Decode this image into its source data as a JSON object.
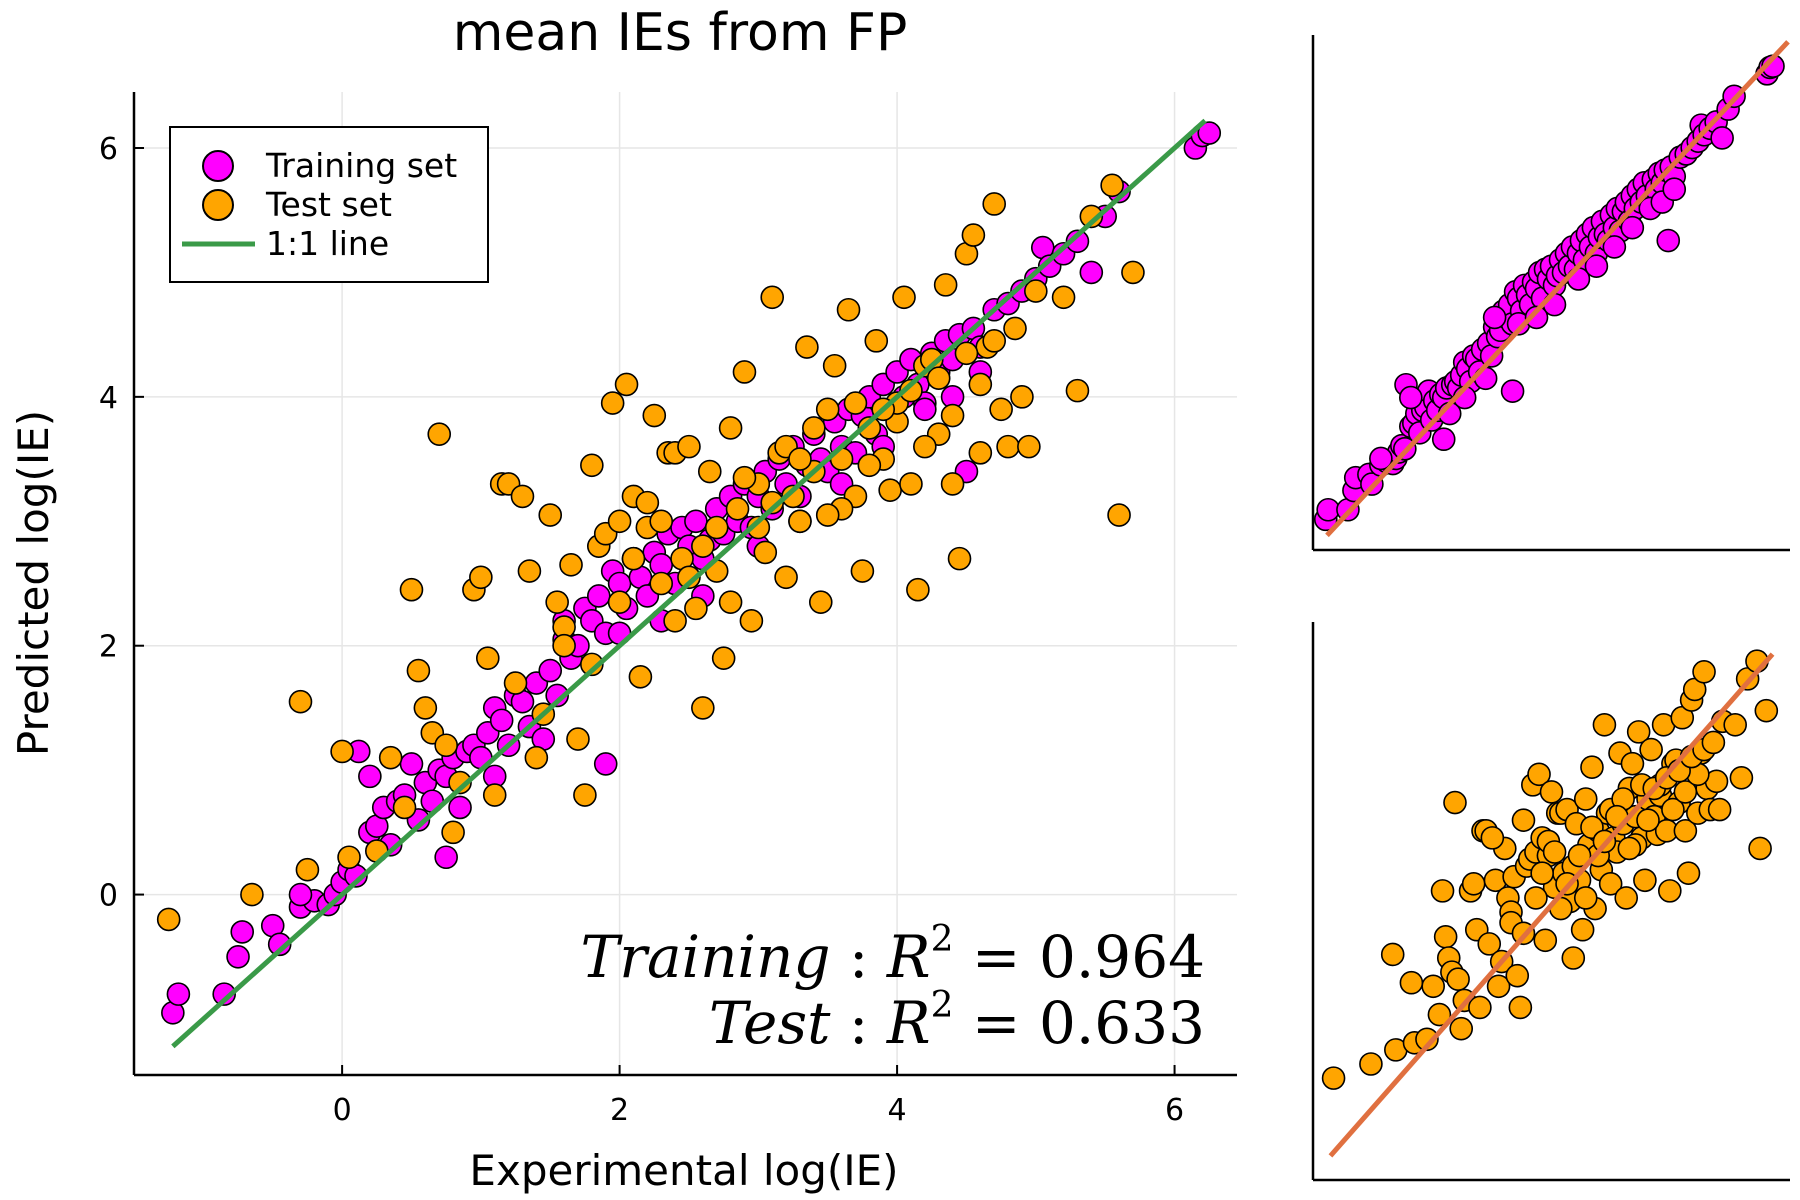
{
  "colors": {
    "training": "#ff00ff",
    "test": "#ffa500",
    "identity_main": "#3a9a48",
    "identity_inset": "#e07040",
    "grid": "#e6e6e6",
    "axis": "#000000"
  },
  "chart_data": [
    {
      "type": "scatter",
      "title": "mean IEs from FP",
      "xlabel": "Experimental log(IE)",
      "ylabel": "Predicted log(IE)",
      "xlim": [
        -1.5,
        6.45
      ],
      "ylim": [
        -1.45,
        6.45
      ],
      "xticks": [
        0,
        2,
        4,
        6
      ],
      "yticks": [
        0,
        2,
        4,
        6
      ],
      "grid": true,
      "legend_position": "top-left",
      "legend": [
        "Training set",
        "Test set",
        "1:1 line"
      ],
      "annotations": [
        {
          "label": "Training",
          "r2": "0.964"
        },
        {
          "label": "Test",
          "r2": "0.633"
        }
      ],
      "line": {
        "name": "1:1 line",
        "x": [
          -1.22,
          6.22
        ],
        "y": [
          -1.22,
          6.22
        ]
      },
      "series": [
        {
          "name": "Training set",
          "color": "#ff00ff",
          "points": [
            [
              -1.22,
              -0.95
            ],
            [
              -1.18,
              -0.8
            ],
            [
              -0.85,
              -0.8
            ],
            [
              -0.75,
              -0.5
            ],
            [
              -0.72,
              -0.3
            ],
            [
              -0.5,
              -0.25
            ],
            [
              -0.45,
              -0.4
            ],
            [
              -0.3,
              -0.1
            ],
            [
              -0.2,
              -0.05
            ],
            [
              -0.1,
              -0.08
            ],
            [
              -0.05,
              0.0
            ],
            [
              0.0,
              0.1
            ],
            [
              0.05,
              0.2
            ],
            [
              0.1,
              0.15
            ],
            [
              0.12,
              1.15
            ],
            [
              0.2,
              0.5
            ],
            [
              0.25,
              0.55
            ],
            [
              0.3,
              0.7
            ],
            [
              0.35,
              0.4
            ],
            [
              0.4,
              0.75
            ],
            [
              0.45,
              0.8
            ],
            [
              0.5,
              1.05
            ],
            [
              0.55,
              0.6
            ],
            [
              0.6,
              0.9
            ],
            [
              0.65,
              0.75
            ],
            [
              0.7,
              1.0
            ],
            [
              0.75,
              0.95
            ],
            [
              0.8,
              1.1
            ],
            [
              0.85,
              0.7
            ],
            [
              0.9,
              1.15
            ],
            [
              0.95,
              1.2
            ],
            [
              1.0,
              1.1
            ],
            [
              1.05,
              1.3
            ],
            [
              1.1,
              1.5
            ],
            [
              1.15,
              1.4
            ],
            [
              1.2,
              1.2
            ],
            [
              1.25,
              1.6
            ],
            [
              1.3,
              1.55
            ],
            [
              1.35,
              1.35
            ],
            [
              1.4,
              1.7
            ],
            [
              1.45,
              1.25
            ],
            [
              1.5,
              1.8
            ],
            [
              1.55,
              1.6
            ],
            [
              1.6,
              2.05
            ],
            [
              1.65,
              1.9
            ],
            [
              1.7,
              2.0
            ],
            [
              1.75,
              2.3
            ],
            [
              1.8,
              2.2
            ],
            [
              1.85,
              2.4
            ],
            [
              1.9,
              2.1
            ],
            [
              1.95,
              2.6
            ],
            [
              2.0,
              2.5
            ],
            [
              2.05,
              2.3
            ],
            [
              2.1,
              2.7
            ],
            [
              2.15,
              2.55
            ],
            [
              2.2,
              2.4
            ],
            [
              2.25,
              2.75
            ],
            [
              2.3,
              2.65
            ],
            [
              2.35,
              2.9
            ],
            [
              2.4,
              2.5
            ],
            [
              2.45,
              2.95
            ],
            [
              2.5,
              2.8
            ],
            [
              2.55,
              3.0
            ],
            [
              2.6,
              2.7
            ],
            [
              2.65,
              2.85
            ],
            [
              2.7,
              3.1
            ],
            [
              2.75,
              2.9
            ],
            [
              2.8,
              3.2
            ],
            [
              2.85,
              3.0
            ],
            [
              2.9,
              3.3
            ],
            [
              2.95,
              2.95
            ],
            [
              3.0,
              3.2
            ],
            [
              3.05,
              3.4
            ],
            [
              3.1,
              3.1
            ],
            [
              3.15,
              3.5
            ],
            [
              3.2,
              3.3
            ],
            [
              3.25,
              3.6
            ],
            [
              3.3,
              3.2
            ],
            [
              3.35,
              3.45
            ],
            [
              3.4,
              3.7
            ],
            [
              3.45,
              3.5
            ],
            [
              3.5,
              3.4
            ],
            [
              3.55,
              3.8
            ],
            [
              3.6,
              3.6
            ],
            [
              3.65,
              3.9
            ],
            [
              3.7,
              3.55
            ],
            [
              3.75,
              3.85
            ],
            [
              3.8,
              4.0
            ],
            [
              3.85,
              3.7
            ],
            [
              3.9,
              4.1
            ],
            [
              3.95,
              3.9
            ],
            [
              4.0,
              4.2
            ],
            [
              4.05,
              4.0
            ],
            [
              4.1,
              4.3
            ],
            [
              4.15,
              4.1
            ],
            [
              4.2,
              3.95
            ],
            [
              4.25,
              4.35
            ],
            [
              4.3,
              4.2
            ],
            [
              4.35,
              4.45
            ],
            [
              4.4,
              4.3
            ],
            [
              4.45,
              4.5
            ],
            [
              4.5,
              3.4
            ],
            [
              4.55,
              4.55
            ],
            [
              4.6,
              4.4
            ],
            [
              4.7,
              4.7
            ],
            [
              4.8,
              4.75
            ],
            [
              4.9,
              4.85
            ],
            [
              5.0,
              4.95
            ],
            [
              5.05,
              5.2
            ],
            [
              5.1,
              5.05
            ],
            [
              5.2,
              5.15
            ],
            [
              5.3,
              5.25
            ],
            [
              5.4,
              5.0
            ],
            [
              5.5,
              5.45
            ],
            [
              5.6,
              5.65
            ],
            [
              6.15,
              6.0
            ],
            [
              6.2,
              6.1
            ],
            [
              6.25,
              6.12
            ],
            [
              1.9,
              1.05
            ],
            [
              0.75,
              0.3
            ],
            [
              -0.3,
              0.0
            ],
            [
              0.2,
              0.95
            ],
            [
              1.1,
              0.95
            ],
            [
              1.6,
              2.2
            ],
            [
              2.0,
              2.1
            ],
            [
              2.3,
              2.2
            ],
            [
              2.6,
              2.4
            ],
            [
              3.0,
              2.8
            ],
            [
              3.3,
              3.0
            ],
            [
              3.6,
              3.3
            ],
            [
              3.9,
              3.6
            ],
            [
              4.2,
              3.9
            ],
            [
              4.4,
              4.0
            ],
            [
              4.6,
              4.2
            ]
          ]
        },
        {
          "name": "Test set",
          "color": "#ffa500",
          "points": [
            [
              -1.25,
              -0.2
            ],
            [
              -0.65,
              0.0
            ],
            [
              -0.3,
              1.55
            ],
            [
              -0.25,
              0.2
            ],
            [
              0.0,
              1.15
            ],
            [
              0.05,
              0.3
            ],
            [
              0.25,
              0.35
            ],
            [
              0.35,
              1.1
            ],
            [
              0.45,
              0.7
            ],
            [
              0.5,
              2.45
            ],
            [
              0.55,
              1.8
            ],
            [
              0.6,
              1.5
            ],
            [
              0.65,
              1.3
            ],
            [
              0.7,
              3.7
            ],
            [
              0.75,
              1.2
            ],
            [
              0.8,
              0.5
            ],
            [
              0.85,
              0.9
            ],
            [
              0.95,
              2.45
            ],
            [
              1.0,
              2.55
            ],
            [
              1.05,
              1.9
            ],
            [
              1.1,
              0.8
            ],
            [
              1.15,
              3.3
            ],
            [
              1.2,
              3.3
            ],
            [
              1.25,
              1.7
            ],
            [
              1.35,
              2.6
            ],
            [
              1.4,
              1.1
            ],
            [
              1.45,
              1.45
            ],
            [
              1.5,
              3.05
            ],
            [
              1.55,
              2.35
            ],
            [
              1.6,
              2.15
            ],
            [
              1.65,
              2.65
            ],
            [
              1.7,
              1.25
            ],
            [
              1.75,
              0.8
            ],
            [
              1.8,
              3.45
            ],
            [
              1.85,
              2.8
            ],
            [
              1.9,
              2.9
            ],
            [
              1.95,
              3.95
            ],
            [
              2.0,
              3.0
            ],
            [
              2.05,
              4.1
            ],
            [
              2.1,
              3.2
            ],
            [
              2.15,
              1.75
            ],
            [
              2.2,
              2.95
            ],
            [
              2.25,
              3.85
            ],
            [
              2.3,
              2.5
            ],
            [
              2.35,
              3.55
            ],
            [
              2.4,
              3.55
            ],
            [
              2.45,
              2.7
            ],
            [
              2.5,
              3.6
            ],
            [
              2.55,
              2.3
            ],
            [
              2.6,
              1.5
            ],
            [
              2.65,
              3.4
            ],
            [
              2.7,
              2.6
            ],
            [
              2.75,
              1.9
            ],
            [
              2.8,
              3.75
            ],
            [
              2.85,
              3.1
            ],
            [
              2.9,
              4.2
            ],
            [
              2.95,
              2.2
            ],
            [
              3.0,
              3.3
            ],
            [
              3.05,
              2.75
            ],
            [
              3.1,
              4.8
            ],
            [
              3.15,
              3.55
            ],
            [
              3.2,
              2.55
            ],
            [
              3.25,
              3.2
            ],
            [
              3.3,
              3.0
            ],
            [
              3.35,
              4.4
            ],
            [
              3.4,
              3.4
            ],
            [
              3.45,
              2.35
            ],
            [
              3.5,
              3.9
            ],
            [
              3.55,
              4.25
            ],
            [
              3.6,
              3.5
            ],
            [
              3.65,
              4.7
            ],
            [
              3.7,
              3.2
            ],
            [
              3.75,
              2.6
            ],
            [
              3.8,
              3.75
            ],
            [
              3.85,
              4.45
            ],
            [
              3.9,
              3.5
            ],
            [
              3.95,
              3.25
            ],
            [
              4.0,
              3.8
            ],
            [
              4.05,
              4.8
            ],
            [
              4.1,
              3.3
            ],
            [
              4.15,
              2.45
            ],
            [
              4.2,
              4.25
            ],
            [
              4.25,
              4.3
            ],
            [
              4.3,
              3.7
            ],
            [
              4.35,
              4.9
            ],
            [
              4.4,
              3.3
            ],
            [
              4.45,
              2.7
            ],
            [
              4.5,
              5.15
            ],
            [
              4.55,
              5.3
            ],
            [
              4.6,
              3.55
            ],
            [
              4.65,
              4.4
            ],
            [
              4.7,
              5.55
            ],
            [
              4.75,
              3.9
            ],
            [
              4.8,
              3.6
            ],
            [
              4.9,
              4.0
            ],
            [
              4.95,
              3.6
            ],
            [
              5.0,
              4.85
            ],
            [
              5.2,
              4.8
            ],
            [
              5.3,
              4.05
            ],
            [
              5.4,
              5.45
            ],
            [
              5.55,
              5.7
            ],
            [
              5.6,
              3.05
            ],
            [
              5.7,
              5.0
            ],
            [
              2.0,
              2.35
            ],
            [
              2.2,
              3.15
            ],
            [
              2.4,
              2.2
            ],
            [
              2.6,
              2.8
            ],
            [
              2.8,
              2.35
            ],
            [
              3.0,
              2.95
            ],
            [
              3.2,
              3.6
            ],
            [
              3.4,
              3.75
            ],
            [
              3.6,
              3.1
            ],
            [
              3.8,
              3.45
            ],
            [
              4.0,
              3.95
            ],
            [
              4.2,
              3.6
            ],
            [
              4.4,
              3.85
            ],
            [
              4.6,
              4.1
            ],
            [
              1.6,
              2.0
            ],
            [
              1.8,
              1.85
            ],
            [
              2.1,
              2.7
            ],
            [
              2.3,
              3.0
            ],
            [
              2.5,
              2.55
            ],
            [
              2.7,
              2.95
            ],
            [
              2.9,
              3.35
            ],
            [
              3.1,
              3.15
            ],
            [
              3.3,
              3.5
            ],
            [
              3.5,
              3.05
            ],
            [
              3.7,
              3.95
            ],
            [
              3.9,
              3.9
            ],
            [
              4.1,
              4.05
            ],
            [
              4.3,
              4.15
            ],
            [
              4.5,
              4.35
            ],
            [
              4.7,
              4.45
            ],
            [
              4.85,
              4.55
            ],
            [
              1.3,
              3.2
            ]
          ]
        }
      ]
    },
    {
      "type": "scatter",
      "series": [
        {
          "name": "Training set"
        }
      ],
      "line": {
        "x": [
          -1.2,
          6.5
        ],
        "y": [
          -1.2,
          6.5
        ]
      }
    },
    {
      "type": "scatter",
      "series": [
        {
          "name": "Test set"
        }
      ],
      "line": {
        "x": [
          -1.3,
          5.8
        ],
        "y": [
          -1.3,
          5.8
        ]
      }
    }
  ]
}
